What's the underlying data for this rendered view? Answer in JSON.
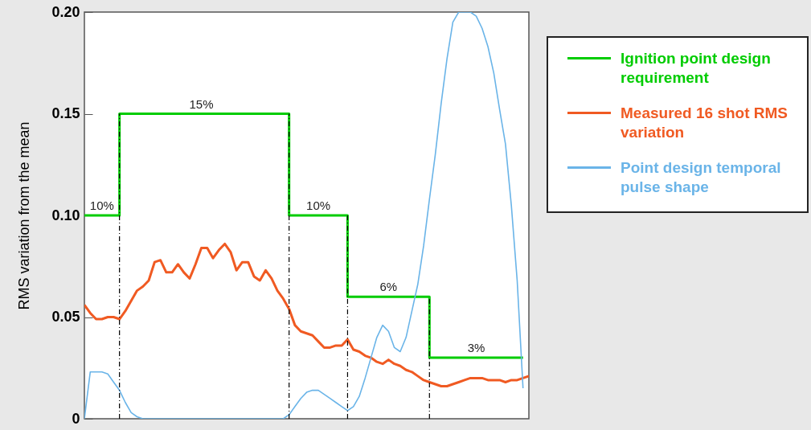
{
  "chart_data": {
    "type": "line",
    "ylabel": "RMS variation from the mean",
    "ylim": [
      0,
      0.2
    ],
    "yticks": [
      {
        "value": 0,
        "label": "0"
      },
      0.05,
      {
        "value": 0.1,
        "label": "0.10"
      },
      0.15,
      {
        "value": 0.2,
        "label": "0.20"
      }
    ],
    "tick_labels": "y",
    "legend": "right",
    "categories": [
      null,
      null,
      null,
      null,
      null,
      null,
      null,
      null,
      null,
      null,
      null,
      null,
      null,
      null,
      null,
      null,
      null,
      null,
      null,
      null,
      null,
      null,
      null,
      null,
      null,
      null,
      null,
      null,
      null,
      null,
      null,
      null,
      null,
      null,
      null,
      null,
      null,
      null,
      null,
      null,
      null,
      null,
      null,
      null,
      null,
      null,
      null,
      null,
      null,
      null,
      null,
      null,
      null,
      null,
      null,
      null,
      null,
      null,
      null,
      null,
      null,
      null,
      null,
      null,
      null,
      null,
      null,
      null,
      null,
      null,
      null,
      null,
      null,
      null,
      null,
      null,
      null
    ],
    "series": [
      {
        "name": "Ignition point design requirement",
        "type": "step",
        "color": "#00cc00",
        "values": [
          0.1,
          0.1,
          0.1,
          0.1,
          0.1,
          0.1,
          0.15,
          0.15,
          0.15,
          0.15,
          0.15,
          0.15,
          0.15,
          0.15,
          0.15,
          0.15,
          0.15,
          0.15,
          0.15,
          0.15,
          0.15,
          0.15,
          0.15,
          0.15,
          0.15,
          0.15,
          0.15,
          0.15,
          0.15,
          0.15,
          0.15,
          0.15,
          0.15,
          0.15,
          0.15,
          0.1,
          0.1,
          0.1,
          0.1,
          0.1,
          0.1,
          0.1,
          0.1,
          0.1,
          0.1,
          0.06,
          0.06,
          0.06,
          0.06,
          0.06,
          0.06,
          0.06,
          0.06,
          0.06,
          0.06,
          0.06,
          0.06,
          0.06,
          0.06,
          0.03,
          0.03,
          0.03,
          0.03,
          0.03,
          0.03,
          0.03,
          0.03,
          0.03,
          0.03,
          0.03,
          0.03,
          0.03,
          0.03,
          0.03,
          0.03,
          0.03,
          null
        ],
        "value_labels": [
          null,
          null,
          null,
          "10%",
          null,
          null,
          null,
          null,
          null,
          null,
          null,
          null,
          null,
          null,
          null,
          null,
          null,
          null,
          null,
          null,
          "15%",
          null,
          null,
          null,
          null,
          null,
          null,
          null,
          null,
          null,
          null,
          null,
          null,
          null,
          null,
          null,
          null,
          null,
          null,
          null,
          "10%",
          null,
          null,
          null,
          null,
          null,
          null,
          null,
          null,
          null,
          null,
          null,
          "6%",
          null,
          null,
          null,
          null,
          null,
          null,
          null,
          null,
          null,
          null,
          null,
          null,
          null,
          null,
          "3%",
          null,
          null,
          null,
          null,
          null,
          null,
          null,
          null,
          null
        ]
      },
      {
        "name": "Measured 16 shot RMS variation",
        "color": "#f05a22",
        "values": [
          0.056,
          0.052,
          0.049,
          0.049,
          0.05,
          0.05,
          0.049,
          0.053,
          0.058,
          0.063,
          0.065,
          0.068,
          0.077,
          0.078,
          0.072,
          0.072,
          0.076,
          0.072,
          0.069,
          0.076,
          0.084,
          0.084,
          0.079,
          0.083,
          0.086,
          0.082,
          0.073,
          0.077,
          0.077,
          0.07,
          0.068,
          0.073,
          0.069,
          0.063,
          0.059,
          0.054,
          0.046,
          0.043,
          0.042,
          0.041,
          0.038,
          0.035,
          0.035,
          0.036,
          0.036,
          0.039,
          0.034,
          0.033,
          0.031,
          0.03,
          0.028,
          0.027,
          0.029,
          0.027,
          0.026,
          0.024,
          0.023,
          0.021,
          0.019,
          0.018,
          0.017,
          0.016,
          0.016,
          0.017,
          0.018,
          0.019,
          0.02,
          0.02,
          0.02,
          0.019,
          0.019,
          0.019,
          0.018,
          0.019,
          0.019,
          0.02,
          0.021
        ]
      },
      {
        "name": "Point design temporal pulse shape",
        "color": "#6ab4e8",
        "values": [
          0,
          0.023,
          0.023,
          0.023,
          0.022,
          0.018,
          0.014,
          0.008,
          0.003,
          0.001,
          0,
          0,
          0,
          0,
          0,
          0,
          0,
          0,
          0,
          0,
          0,
          0,
          0,
          0,
          0,
          0,
          0,
          0,
          0,
          0,
          0,
          0,
          0,
          0,
          0,
          0.002,
          0.006,
          0.01,
          0.013,
          0.014,
          0.014,
          0.012,
          0.01,
          0.008,
          0.006,
          0.004,
          0.006,
          0.011,
          0.02,
          0.03,
          0.04,
          0.046,
          0.043,
          0.035,
          0.033,
          0.04,
          0.053,
          0.066,
          0.085,
          0.108,
          0.13,
          0.155,
          0.177,
          0.195,
          0.2,
          0.2,
          0.2,
          0.198,
          0.192,
          0.183,
          0.17,
          0.152,
          0.135,
          0.105,
          0.068,
          0.015,
          null
        ]
      }
    ]
  }
}
